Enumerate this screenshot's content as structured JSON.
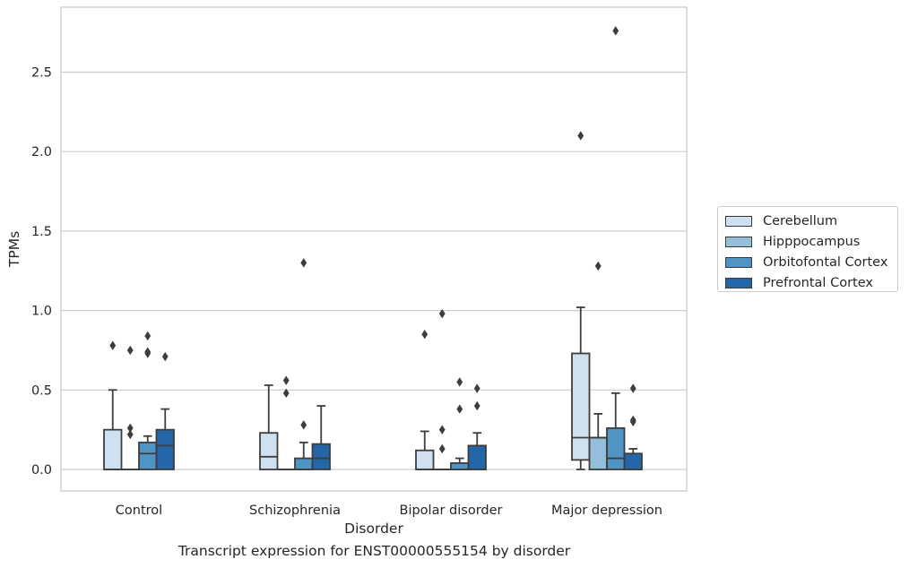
{
  "caption": "Transcript expression for ENST00000555154 by disorder",
  "chart_data": {
    "type": "box",
    "xlabel": "Disorder",
    "ylabel": "TPMs",
    "ylim": [
      -0.13,
      2.9
    ],
    "yticks": [
      "0.0",
      "0.5",
      "1.0",
      "1.5",
      "2.0",
      "2.5"
    ],
    "ytick_values": [
      0,
      0.5,
      1.0,
      1.5,
      2.0,
      2.5
    ],
    "grid": "horizontal",
    "legend_position": "right",
    "categories": [
      "Control",
      "Schizophrenia",
      "Bipolar disorder",
      "Major depression"
    ],
    "series": [
      {
        "name": "Cerebellum",
        "color": "#cfe1f1",
        "boxes": [
          {
            "q1": 0,
            "median": 0,
            "q3": 0.25,
            "whisker_low": 0,
            "whisker_high": 0.5,
            "outliers": [
              0.78
            ]
          },
          {
            "q1": 0,
            "median": 0.08,
            "q3": 0.23,
            "whisker_low": 0,
            "whisker_high": 0.53,
            "outliers": []
          },
          {
            "q1": 0,
            "median": 0,
            "q3": 0.12,
            "whisker_low": 0,
            "whisker_high": 0.24,
            "outliers": [
              0.85
            ]
          },
          {
            "q1": 0.06,
            "median": 0.2,
            "q3": 0.73,
            "whisker_low": 0,
            "whisker_high": 1.02,
            "outliers": [
              2.1
            ]
          }
        ]
      },
      {
        "name": "Hipppocampus",
        "color": "#95bedb",
        "boxes": [
          {
            "q1": 0,
            "median": 0,
            "q3": 0,
            "whisker_low": 0,
            "whisker_high": 0,
            "outliers": [
              0.22,
              0.26,
              0.75
            ]
          },
          {
            "q1": 0,
            "median": 0,
            "q3": 0,
            "whisker_low": 0,
            "whisker_high": 0,
            "outliers": [
              0.48,
              0.56
            ]
          },
          {
            "q1": 0,
            "median": 0,
            "q3": 0,
            "whisker_low": 0,
            "whisker_high": 0,
            "outliers": [
              0.13,
              0.25,
              0.98
            ]
          },
          {
            "q1": 0,
            "median": 0.2,
            "q3": 0.2,
            "whisker_low": 0,
            "whisker_high": 0.35,
            "outliers": [
              1.28
            ]
          }
        ]
      },
      {
        "name": "Orbitofontal Cortex",
        "color": "#5094c4",
        "boxes": [
          {
            "q1": 0,
            "median": 0.1,
            "q3": 0.17,
            "whisker_low": 0,
            "whisker_high": 0.21,
            "outliers": [
              0.73,
              0.74,
              0.84
            ]
          },
          {
            "q1": 0,
            "median": 0,
            "q3": 0.07,
            "whisker_low": 0,
            "whisker_high": 0.17,
            "outliers": [
              0.28,
              1.3
            ]
          },
          {
            "q1": 0,
            "median": 0,
            "q3": 0.04,
            "whisker_low": 0,
            "whisker_high": 0.07,
            "outliers": [
              0.38,
              0.55
            ]
          },
          {
            "q1": 0,
            "median": 0.07,
            "q3": 0.26,
            "whisker_low": 0,
            "whisker_high": 0.48,
            "outliers": [
              2.76
            ]
          }
        ]
      },
      {
        "name": "Prefrontal Cortex",
        "color": "#2466a8",
        "boxes": [
          {
            "q1": 0,
            "median": 0.15,
            "q3": 0.25,
            "whisker_low": 0,
            "whisker_high": 0.38,
            "outliers": [
              0.71
            ]
          },
          {
            "q1": 0,
            "median": 0.07,
            "q3": 0.16,
            "whisker_low": 0,
            "whisker_high": 0.4,
            "outliers": []
          },
          {
            "q1": 0,
            "median": 0,
            "q3": 0.15,
            "whisker_low": 0,
            "whisker_high": 0.23,
            "outliers": [
              0.4,
              0.51
            ]
          },
          {
            "q1": 0,
            "median": 0,
            "q3": 0.1,
            "whisker_low": 0,
            "whisker_high": 0.13,
            "outliers": [
              0.3,
              0.31,
              0.51
            ]
          }
        ]
      }
    ]
  }
}
